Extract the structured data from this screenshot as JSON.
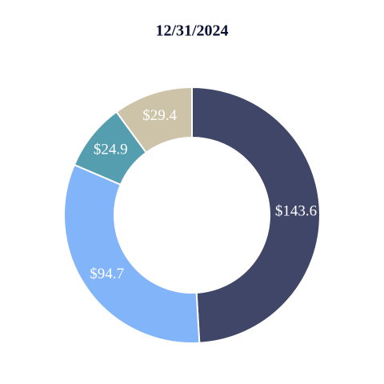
{
  "chart_data": {
    "type": "donut",
    "title": "12/31/2024",
    "values": [
      143.6,
      94.7,
      24.9,
      29.4
    ],
    "value_labels": [
      "$143.6",
      "$94.7",
      "$24.9",
      "$29.4"
    ],
    "colors": [
      "#404668",
      "#82b4fa",
      "#559eb0",
      "#cdc3a8"
    ]
  }
}
